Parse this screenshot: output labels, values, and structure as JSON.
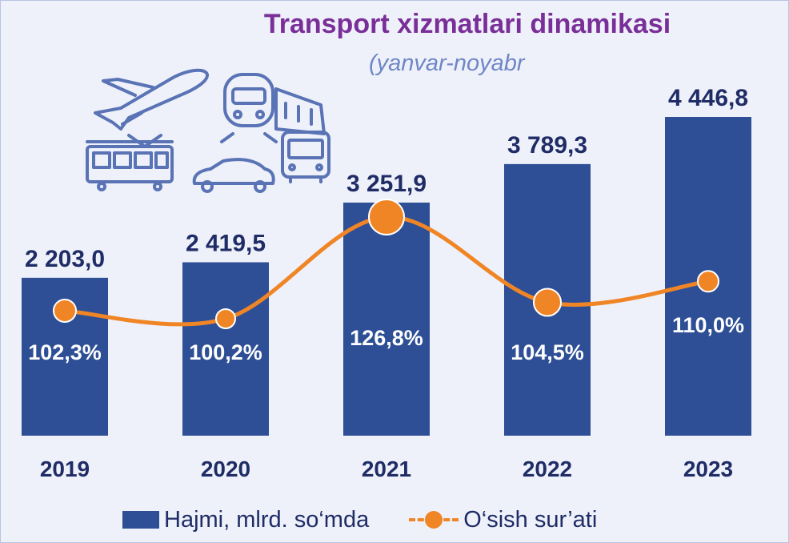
{
  "chart_data": {
    "type": "bar",
    "title": "Transport xizmatlari dinamikasi",
    "subtitle": "(yanvar-noyabr",
    "categories": [
      "2019",
      "2020",
      "2021",
      "2022",
      "2023"
    ],
    "series": [
      {
        "name": "Hajmi, mlrd. so‘mda",
        "type": "bar",
        "values": [
          2203.0,
          2419.5,
          3251.9,
          3789.3,
          4446.8
        ],
        "labels": [
          "2 203,0",
          "2 419,5",
          "3 251,9",
          "3 789,3",
          "4 446,8"
        ]
      },
      {
        "name": "O‘sish sur’ati",
        "type": "line",
        "values": [
          102.3,
          100.2,
          126.8,
          104.5,
          110.0
        ],
        "labels": [
          "102,3%",
          "100,2%",
          "126,8%",
          "104,5%",
          "110,0%"
        ]
      }
    ],
    "legend": "bottom",
    "grid": false,
    "icons": [
      "airplane-icon",
      "train-icon",
      "tram-icon",
      "car-icon",
      "bus-icon"
    ],
    "colors": {
      "bar": "#2e4f95",
      "line": "#f08526",
      "title": "#7a2f98",
      "text": "#1f2c66"
    }
  }
}
